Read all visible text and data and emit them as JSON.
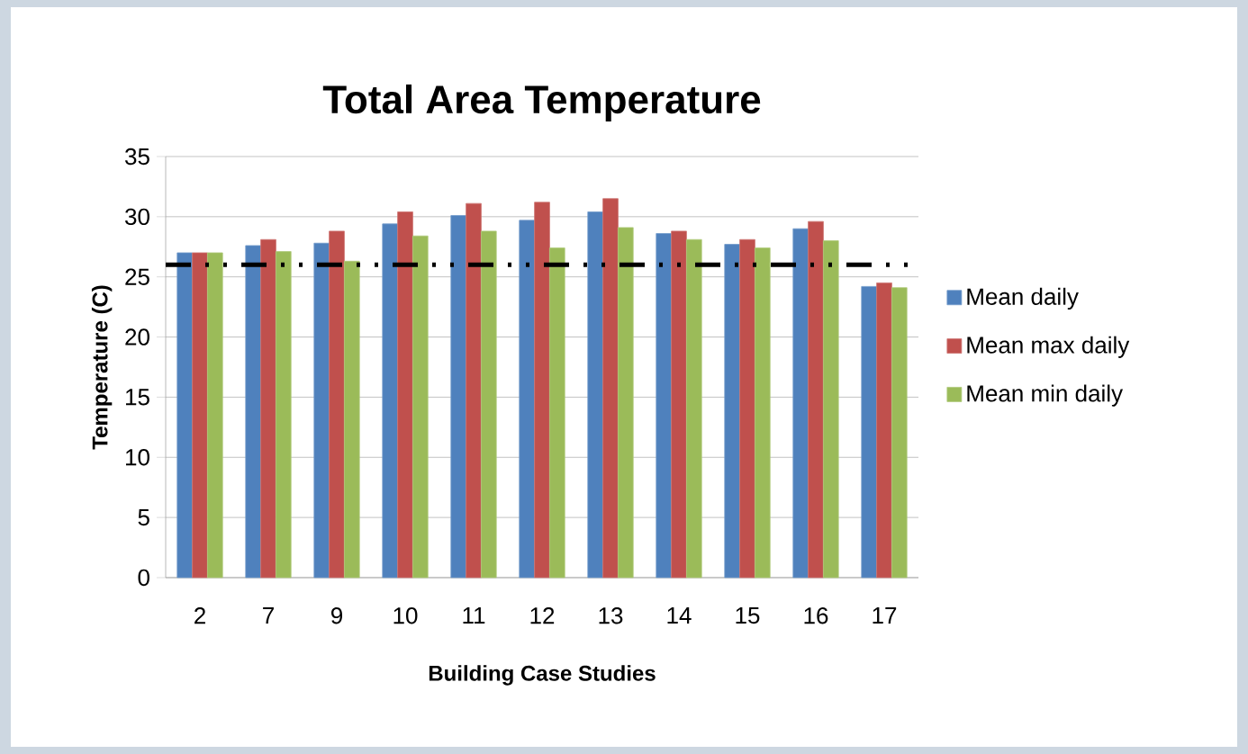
{
  "chart_data": {
    "type": "bar",
    "title": "Total Area Temperature",
    "xlabel": "Building Case Studies",
    "ylabel": "Temperature (C)",
    "categories": [
      "2",
      "7",
      "9",
      "10",
      "11",
      "12",
      "13",
      "14",
      "15",
      "16",
      "17"
    ],
    "series": [
      {
        "name": "Mean daily",
        "color": "#4f81bd",
        "values": [
          27.0,
          27.6,
          27.8,
          29.4,
          30.1,
          29.7,
          30.4,
          28.6,
          27.7,
          29.0,
          24.2
        ]
      },
      {
        "name": "Mean max daily",
        "color": "#c0504d",
        "values": [
          27.0,
          28.1,
          28.8,
          30.4,
          31.1,
          31.2,
          31.5,
          28.8,
          28.1,
          29.6,
          24.5
        ]
      },
      {
        "name": "Mean min daily",
        "color": "#9bbb59",
        "values": [
          27.0,
          27.1,
          26.3,
          28.4,
          28.8,
          27.4,
          29.1,
          28.1,
          27.4,
          28.0,
          24.1
        ]
      }
    ],
    "ylim": [
      0,
      35
    ],
    "yticks": [
      0,
      5,
      10,
      15,
      20,
      25,
      30,
      35
    ],
    "grid": "y",
    "legend": "right",
    "ref_lines": [
      {
        "axis": "y",
        "value": 26,
        "color": "#000000",
        "line_style": "dashed"
      }
    ]
  }
}
